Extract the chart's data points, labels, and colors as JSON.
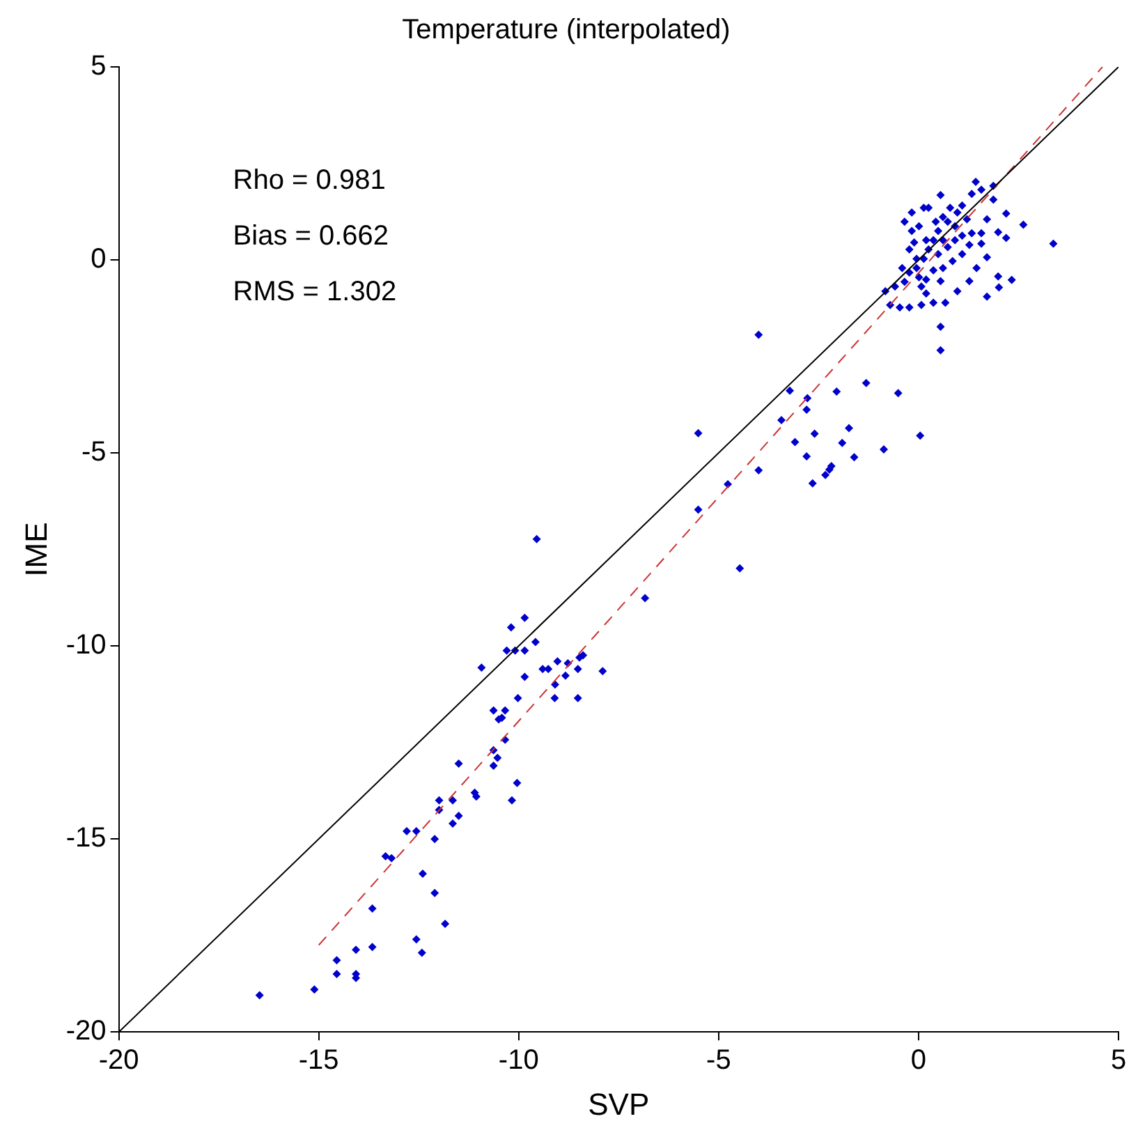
{
  "chart_data": {
    "type": "scatter",
    "title": "Temperature (interpolated)",
    "xlabel": "SVP",
    "ylabel": "IME",
    "annotations": [
      "Rho = 0.981",
      "Bias = 0.662",
      "RMS = 1.302"
    ],
    "xlim": [
      -20,
      5
    ],
    "xticks": [
      -20,
      -15,
      -10,
      -5,
      0,
      5
    ],
    "ylim": [
      -20,
      5
    ],
    "yticks": [
      -20,
      -15,
      -10,
      -5,
      0,
      5
    ],
    "grid": false,
    "legend": false,
    "marker": "diamond",
    "series": [
      {
        "type": "line",
        "color": "#000000",
        "line_style": "solid",
        "marker": "none",
        "x": [
          -20,
          5
        ],
        "values": [
          -20,
          5
        ]
      },
      {
        "type": "line",
        "color": "#cc3333",
        "line_style": "dashed",
        "marker": "none",
        "x": [
          -15,
          4.6
        ],
        "values": [
          -17.75,
          5.0
        ]
      },
      {
        "type": "scatter",
        "color": "#0000cc",
        "x": [
          -16.48,
          -15.11,
          -14.55,
          -14.55,
          -14.07,
          -14.07,
          -14.07,
          -13.66,
          -13.66,
          -13.33,
          -13.18,
          -12.8,
          -12.56,
          -12.56,
          -12.42,
          -12.4,
          -12.1,
          -12.1,
          -11.84,
          -11.99,
          -11.99,
          -11.65,
          -11.65,
          -11.5,
          -11.5,
          -11.1,
          -11.06,
          -10.93,
          -10.63,
          -10.63,
          -10.53,
          -10.63,
          -10.42,
          -10.5,
          -10.34,
          -10.34,
          -10.3,
          -10.09,
          -10.19,
          -10.17,
          -10.04,
          -10.02,
          -9.85,
          -9.85,
          -9.85,
          -9.58,
          -9.55,
          -9.4,
          -9.26,
          -9.03,
          -9.1,
          -9.09,
          -8.83,
          -8.77,
          -8.52,
          -8.52,
          -8.48,
          -8.39,
          -7.9,
          -6.84,
          -5.51,
          -5.51,
          -4.77,
          -4.47,
          -4.0,
          -4.0,
          -3.43,
          -3.22,
          -3.09,
          -2.8,
          -2.78,
          -2.8,
          -2.65,
          -2.6,
          -2.33,
          -2.23,
          -2.18,
          -2.05,
          -1.91,
          -1.74,
          -1.61,
          -1.31,
          -0.87,
          -0.51,
          0.04,
          1.43,
          1.87,
          1.57,
          0.55,
          1.87,
          2.62,
          3.37,
          2.19,
          1.71,
          1.99,
          2.19,
          1.57,
          1.71,
          1.99,
          2.33,
          2.01,
          1.71,
          1.27,
          0.97,
          0.67,
          0.55,
          0.55,
          0.55,
          0.37,
          0.07,
          -0.23,
          -0.47,
          -0.71,
          -0.83,
          -0.59,
          -0.35,
          -0.23,
          -0.05,
          0.13,
          0.25,
          0.37,
          0.49,
          0.73,
          0.97,
          1.09,
          0.13,
          -0.17,
          0.01,
          -0.17,
          -0.11,
          0.19,
          0.61,
          0.79,
          0.91,
          1.21,
          1.33,
          1.27,
          1.09,
          0.85,
          0.61,
          0.37,
          0.19,
          0.49,
          0.73,
          0.91,
          0.01,
          0.19,
          0.07,
          1.45,
          1.57,
          1.33,
          -0.23,
          -0.05,
          -0.41,
          0.61,
          0.43,
          0.25,
          -0.35,
          1.09
        ],
        "values": [
          -19.05,
          -18.9,
          -18.14,
          -18.5,
          -17.87,
          -18.5,
          -18.6,
          -17.8,
          -16.8,
          -15.45,
          -15.5,
          -14.8,
          -14.8,
          -17.6,
          -17.95,
          -15.9,
          -15.0,
          -16.4,
          -17.2,
          -14.0,
          -14.25,
          -14.0,
          -14.6,
          -14.4,
          -13.05,
          -13.8,
          -13.9,
          -10.56,
          -12.7,
          -13.1,
          -12.9,
          -11.67,
          -11.86,
          -11.9,
          -11.67,
          -12.43,
          -10.12,
          -10.12,
          -9.52,
          -14.0,
          -13.55,
          -11.35,
          -10.8,
          -10.12,
          -9.27,
          -9.9,
          -7.23,
          -10.6,
          -10.6,
          -10.4,
          -11.35,
          -11.0,
          -10.77,
          -10.45,
          -10.6,
          -11.35,
          -10.3,
          -10.24,
          -10.65,
          -8.76,
          -4.49,
          -6.47,
          -5.81,
          -7.99,
          -1.94,
          -5.45,
          -4.15,
          -3.39,
          -4.72,
          -3.88,
          -3.58,
          -5.09,
          -5.79,
          -4.5,
          -5.57,
          -5.43,
          -5.34,
          -3.41,
          -4.74,
          -4.36,
          -5.11,
          -3.19,
          -4.91,
          -3.45,
          -4.55,
          2.02,
          1.92,
          1.82,
          1.68,
          1.56,
          0.91,
          0.42,
          1.2,
          1.05,
          0.72,
          0.57,
          0.42,
          0.07,
          -0.43,
          -0.52,
          -0.71,
          -0.95,
          -0.55,
          -0.81,
          -1.11,
          -0.55,
          -1.73,
          -2.34,
          -1.11,
          -1.17,
          -1.23,
          -1.23,
          -1.17,
          -0.81,
          -0.69,
          -0.57,
          -0.33,
          -0.21,
          0.03,
          0.27,
          0.51,
          0.75,
          0.99,
          1.23,
          1.41,
          1.35,
          1.23,
          0.87,
          0.75,
          0.45,
          0.51,
          1.11,
          1.35,
          0.87,
          1.05,
          0.69,
          0.39,
          0.15,
          -0.03,
          -0.21,
          -0.27,
          -0.51,
          0.15,
          0.33,
          0.51,
          -0.45,
          -0.87,
          -0.69,
          -0.21,
          0.69,
          1.71,
          0.27,
          0.03,
          -0.21,
          0.51,
          0.99,
          1.35,
          0.99,
          0.63
        ]
      }
    ]
  }
}
